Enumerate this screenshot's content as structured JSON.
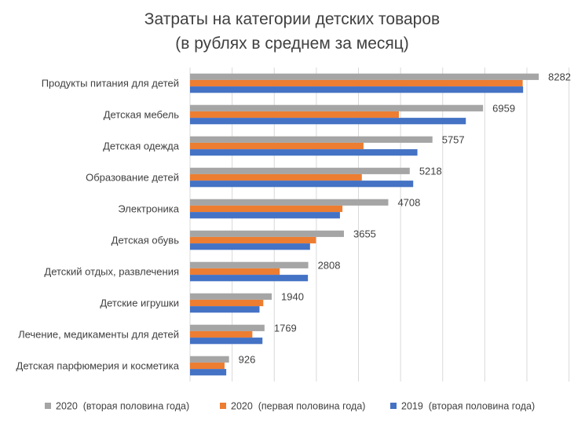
{
  "chart_data": {
    "type": "bar",
    "orientation": "horizontal",
    "title_lines": [
      "Затраты на категории детских товаров",
      "(в рублях в среднем за месяц)"
    ],
    "categories": [
      "Продукты питания для детей",
      "Детская мебель",
      "Детская одежда",
      "Образование детей",
      "Электроника",
      "Детская обувь",
      "Детский отдых, развлечения",
      "Детские игрушки",
      "Лечение, медикаменты для детей",
      "Детская парфюмерия и косметика"
    ],
    "series": [
      {
        "name": "2020  (вторая половина года)",
        "color": "#a5a5a5",
        "values": [
          8282,
          6959,
          5757,
          5218,
          4708,
          3655,
          2808,
          1940,
          1769,
          926
        ]
      },
      {
        "name": "2020  (первая половина года)",
        "color": "#ed7d31",
        "values": [
          7900,
          4960,
          4120,
          4080,
          3620,
          2990,
          2130,
          1740,
          1480,
          820
        ]
      },
      {
        "name": "2019  (вторая половина года)",
        "color": "#4472c4",
        "values": [
          7910,
          6550,
          5400,
          5300,
          3560,
          2850,
          2800,
          1650,
          1720,
          860
        ]
      }
    ],
    "data_labels_series": 0,
    "xlim": [
      0,
      9000
    ],
    "grid": true,
    "legend_position": "bottom"
  }
}
